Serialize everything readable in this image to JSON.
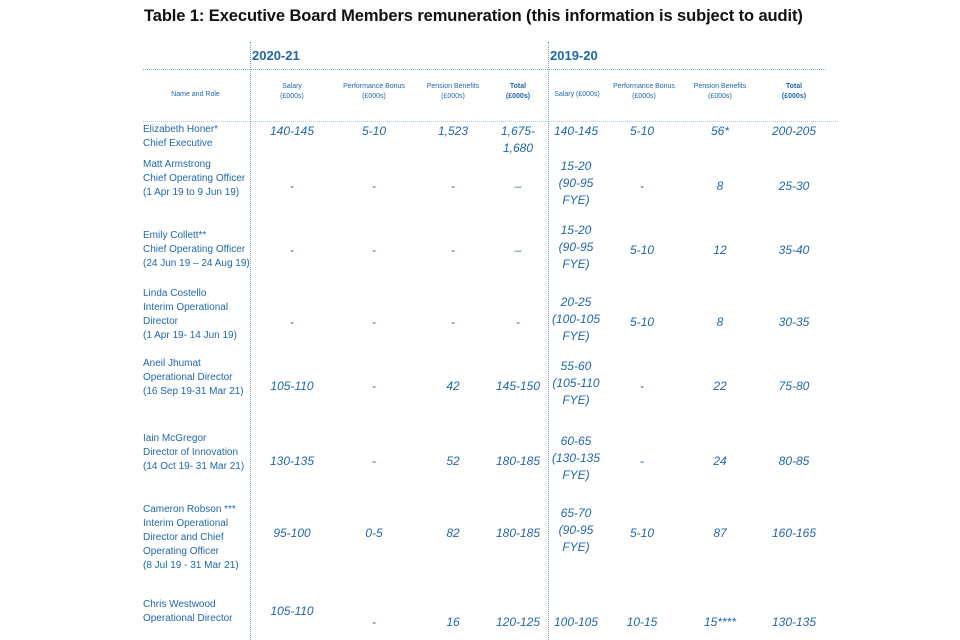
{
  "title": "Table 1: Executive Board Members remuneration (this information is subject to audit)",
  "periods": [
    "2020-21",
    "2019-20"
  ],
  "headers": {
    "name": "Name and Role",
    "c1": "Salary\n(£000s)",
    "c2": "Performance Bonus\n(£000s)",
    "c3": "Pension Benefits\n(£000s)",
    "c4": "Total\n(£000s)",
    "c5": "Salary (£000s)",
    "c6": "Performance Bonus\n(£000s)",
    "c7": "Pension Benefits\n(£000s)",
    "c8": "Total\n(£000s)"
  },
  "rows": [
    {
      "name": "Elizabeth Honer*\nChief Executive",
      "cells": [
        "140-145",
        "5-10",
        "1,523",
        "1,675-\n1,680",
        "140-145",
        "5-10",
        "56*",
        "200-205"
      ]
    },
    {
      "name": "Matt Armstrong\nChief Operating Officer\n(1 Apr 19 to 9 Jun 19)",
      "cells": [
        "-",
        "-",
        "-",
        "–",
        "15-20\n(90-95\nFYE)",
        "-",
        "8",
        "25-30"
      ]
    },
    {
      "name": "Emily Collett**\nChief Operating Officer\n(24 Jun 19 – 24 Aug 19)",
      "cells": [
        "-",
        "-",
        "-",
        "–",
        "15-20\n(90-95\nFYE)",
        "5-10",
        "12",
        "35-40"
      ]
    },
    {
      "name": "Linda Costello\nInterim Operational\nDirector\n(1 Apr 19- 14 Jun 19)",
      "cells": [
        "-",
        "-",
        "-",
        "-",
        "20-25\n(100-105\nFYE)",
        "5-10",
        "8",
        "30-35"
      ]
    },
    {
      "name": "Aneil Jhumat\nOperational Director\n(16 Sep 19-31 Mar 21)",
      "cells": [
        "105-110",
        "-",
        "42",
        "145-150",
        "55-60\n(105-110\nFYE)",
        "-",
        "22",
        "75-80"
      ]
    },
    {
      "name": "Iain McGregor\nDirector of Innovation\n(14 Oct 19- 31 Mar 21)",
      "cells": [
        "130-135",
        "-",
        "52",
        "180-185",
        "60-65\n(130-135\nFYE)",
        "-",
        "24",
        "80-85"
      ]
    },
    {
      "name": "Cameron Robson ***\nInterim Operational\nDirector and Chief\nOperating Officer\n(8 Jul 19 - 31 Mar 21)",
      "cells": [
        "95-100",
        "0-5",
        "82",
        "180-185",
        "65-70\n(90-95\nFYE)",
        "5-10",
        "87",
        "160-165"
      ]
    },
    {
      "name": "Chris Westwood\nOperational Director",
      "cells": [
        "105-110",
        "-",
        "16",
        "120-125",
        "100-105",
        "10-15",
        "15****",
        "130-135"
      ]
    }
  ]
}
